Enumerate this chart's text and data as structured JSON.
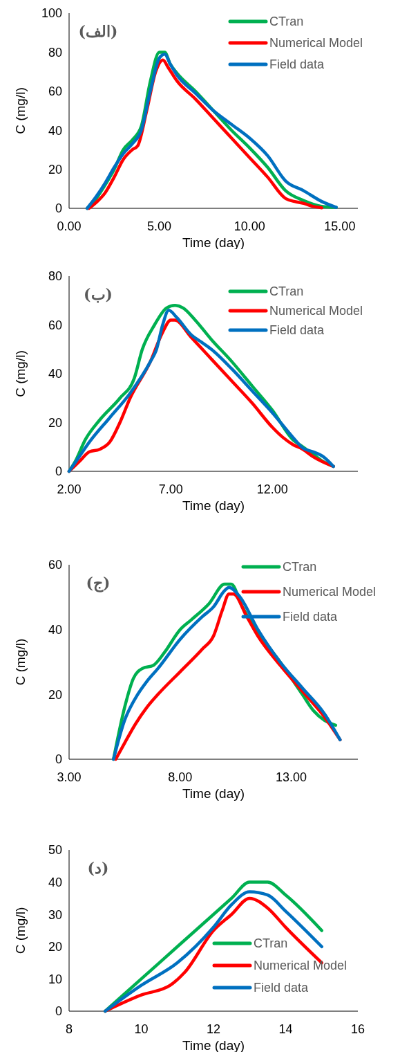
{
  "chart_data": [
    {
      "type": "line",
      "xlabel": "Time (day)",
      "ylabel": "C (mg/l)",
      "annotations": [
        "(الف)"
      ],
      "xlim": [
        0,
        16
      ],
      "xticks": [
        {
          "value": 0,
          "label": "0.00"
        },
        {
          "value": 5,
          "label": "5.00"
        },
        {
          "value": 10,
          "label": "10.00"
        },
        {
          "value": 15,
          "label": "15.00"
        }
      ],
      "ylim": [
        0,
        100
      ],
      "yticks": [
        0,
        20,
        40,
        60,
        80,
        100
      ],
      "legend": "top right",
      "grid": false,
      "marker": "none",
      "line_style": "solid",
      "series": [
        {
          "name": "CTran",
          "color": "#00b050",
          "x": [
            1,
            1.5,
            2,
            2.5,
            3,
            3.5,
            4,
            4.5,
            5,
            5.3,
            5.6,
            6,
            7,
            8,
            9,
            10,
            11,
            12,
            13,
            14,
            14.8
          ],
          "values": [
            0,
            5,
            12,
            20,
            30,
            35,
            42,
            65,
            80,
            80,
            74,
            69,
            60,
            50,
            40,
            31,
            21,
            9,
            4,
            1,
            0.5
          ]
        },
        {
          "name": "Numerical Model",
          "color": "#ff0000",
          "x": [
            1.1,
            1.5,
            2,
            2.5,
            3,
            3.5,
            3.8,
            4.3,
            4.8,
            5.2,
            5.5,
            6,
            7,
            8,
            9,
            10,
            11,
            12,
            12.5,
            13,
            13.5,
            14
          ],
          "values": [
            0,
            3,
            8,
            16,
            25,
            30,
            32,
            50,
            70,
            76,
            72,
            65,
            56,
            46,
            36,
            26,
            16,
            5,
            3.5,
            2.5,
            1,
            0.3
          ]
        },
        {
          "name": "Field data",
          "color": "#0070c0",
          "x": [
            1,
            1.5,
            2,
            2.5,
            3,
            3.5,
            4,
            4.5,
            5,
            5.3,
            5.6,
            6,
            7,
            8,
            9,
            10,
            11,
            12,
            13,
            14,
            14.8
          ],
          "values": [
            0,
            6,
            13,
            21,
            28,
            33,
            40,
            60,
            77,
            79,
            74,
            68,
            59,
            50,
            43,
            36,
            27,
            14,
            9,
            3.5,
            0.5
          ]
        }
      ]
    },
    {
      "type": "line",
      "xlabel": "Time (day)",
      "ylabel": "C (mg/l)",
      "annotations": [
        "(ب)"
      ],
      "xlim": [
        2,
        16.2
      ],
      "xticks": [
        {
          "value": 2,
          "label": "2.00"
        },
        {
          "value": 7,
          "label": "7.00"
        },
        {
          "value": 12,
          "label": "12.00"
        }
      ],
      "ylim": [
        0,
        80
      ],
      "yticks": [
        0,
        20,
        40,
        60,
        80
      ],
      "legend": "top right",
      "grid": false,
      "marker": "none",
      "line_style": "solid",
      "series": [
        {
          "name": "CTran",
          "color": "#00b050",
          "x": [
            2,
            2.3,
            2.8,
            3.5,
            4.5,
            5.2,
            5.6,
            6.2,
            6.8,
            7.2,
            7.6,
            8.2,
            9,
            10,
            11,
            12,
            13,
            13.5,
            14,
            14.5,
            15
          ],
          "values": [
            0,
            4,
            13,
            21,
            30,
            38,
            50,
            60,
            67,
            68,
            67,
            62,
            54,
            45,
            35,
            25,
            13,
            10,
            7,
            4,
            2
          ]
        },
        {
          "name": "Numerical Model",
          "color": "#ff0000",
          "x": [
            2,
            2.5,
            3,
            3.5,
            4,
            4.5,
            5,
            6,
            6.6,
            7,
            7.2,
            8,
            9,
            10,
            11,
            12,
            12.5,
            13,
            13.5,
            14,
            15
          ],
          "values": [
            0,
            4,
            8,
            9,
            12,
            20,
            30,
            45,
            57,
            62,
            62,
            55,
            46,
            37,
            28,
            18,
            14,
            11,
            9,
            6,
            2
          ]
        },
        {
          "name": "Field data",
          "color": "#0070c0",
          "x": [
            2,
            2.5,
            3,
            4,
            5,
            6,
            6.3,
            6.6,
            6.9,
            7.3,
            8,
            8.5,
            9,
            10,
            11,
            12,
            13,
            13.5,
            14,
            14.5,
            15
          ],
          "values": [
            0,
            6,
            12,
            22,
            32,
            45,
            50,
            60,
            66,
            63,
            56,
            53,
            50,
            42,
            33,
            24,
            14,
            9.5,
            8,
            6,
            2
          ]
        }
      ]
    },
    {
      "type": "line",
      "xlabel": "Time (day)",
      "ylabel": "C (mg/l)",
      "annotations": [
        "(ج)"
      ],
      "xlim": [
        3,
        16
      ],
      "xticks": [
        {
          "value": 3,
          "label": "3.00"
        },
        {
          "value": 8,
          "label": "8.00"
        },
        {
          "value": 13,
          "label": "13.00"
        }
      ],
      "ylim": [
        0,
        60
      ],
      "yticks": [
        0,
        20,
        40,
        60
      ],
      "legend": "top right",
      "grid": false,
      "marker": "none",
      "line_style": "solid",
      "series": [
        {
          "name": "CTran",
          "color": "#00b050",
          "x": [
            5,
            5.5,
            5.9,
            6.3,
            6.8,
            7.3,
            8,
            8.5,
            9.3,
            10,
            10.3,
            10.8,
            11.5,
            12.5,
            13.5,
            14,
            14.5,
            15
          ],
          "values": [
            0,
            16,
            25,
            28,
            29,
            33,
            40,
            43,
            48,
            54,
            54,
            47,
            39,
            30,
            20,
            15,
            12,
            10.5
          ]
        },
        {
          "name": "Numerical Model",
          "color": "#ff0000",
          "x": [
            5.1,
            5.5,
            6,
            6.5,
            7,
            8,
            9,
            9.5,
            9.9,
            10.2,
            10.4,
            11,
            11.5,
            12.5,
            13.5,
            14.5,
            15.2
          ],
          "values": [
            0,
            5,
            11,
            16,
            20,
            27,
            34,
            38,
            46,
            51,
            51,
            44,
            38,
            29,
            21,
            13,
            6
          ]
        },
        {
          "name": "Field data",
          "color": "#0070c0",
          "x": [
            5,
            5.5,
            6,
            6.5,
            7,
            8,
            9,
            9.5,
            10,
            10.2,
            10.7,
            11.5,
            12.5,
            13.5,
            14.5,
            15.2
          ],
          "values": [
            0,
            12,
            19,
            24,
            28,
            37,
            44,
            47,
            52,
            53,
            50,
            40,
            30,
            22,
            14,
            6
          ]
        }
      ]
    },
    {
      "type": "line",
      "xlabel": "Time (day)",
      "ylabel": "C (mg/l)",
      "annotations": [
        "(د)"
      ],
      "xlim": [
        8,
        16
      ],
      "xticks": [
        8,
        10,
        12,
        14,
        16
      ],
      "ylim": [
        0,
        50
      ],
      "yticks": [
        0,
        10,
        20,
        30,
        40,
        50
      ],
      "legend": "bottom right",
      "grid": false,
      "marker": "none",
      "line_style": "solid",
      "series": [
        {
          "name": "CTran",
          "color": "#00b050",
          "x": [
            9,
            10,
            11,
            12,
            12.5,
            13,
            13.5,
            14,
            15
          ],
          "values": [
            0,
            10,
            20,
            30,
            35,
            40,
            40,
            36,
            25
          ]
        },
        {
          "name": "Numerical Model",
          "color": "#ff0000",
          "x": [
            9,
            10,
            10.8,
            11.2,
            12,
            12.5,
            13,
            13.5,
            14,
            15
          ],
          "values": [
            0,
            5,
            8,
            12,
            25,
            30,
            35,
            32,
            26,
            15
          ]
        },
        {
          "name": "Field data",
          "color": "#0070c0",
          "x": [
            9,
            10,
            11,
            12,
            12.5,
            13,
            13.5,
            14,
            15
          ],
          "values": [
            0,
            8,
            15,
            26,
            33,
            37,
            36,
            31,
            20
          ]
        }
      ]
    }
  ]
}
